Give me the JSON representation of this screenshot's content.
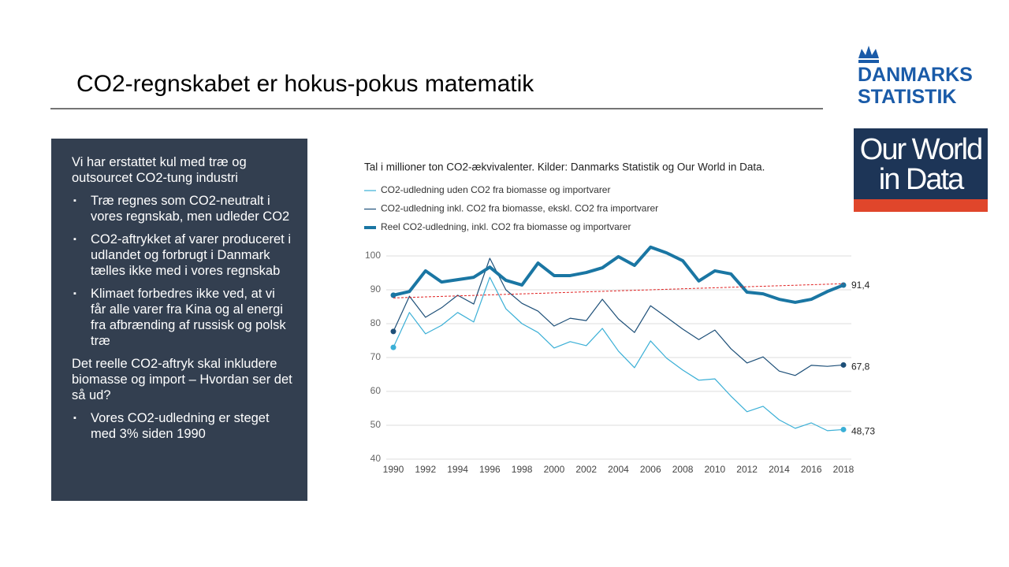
{
  "title": "CO2-regnskabet er hokus-pokus matematik",
  "textbox": {
    "items": [
      {
        "level": 0,
        "text": "Vi har erstattet kul med træ og outsourcet CO2-tung industri"
      },
      {
        "level": 1,
        "text": "Træ regnes som CO2-neutralt i vores regnskab, men udleder CO2"
      },
      {
        "level": 1,
        "text": "CO2-aftrykket af varer produceret i udlandet og forbrugt i Danmark tælles ikke med i vores regnskab"
      },
      {
        "level": 1,
        "text": "Klimaet forbedres ikke ved, at vi får alle varer fra Kina og al energi fra afbrænding af russisk og polsk træ"
      },
      {
        "level": 0,
        "text": "Det reelle CO2-aftryk skal inkludere biomasse og import – Hvordan ser det så ud?"
      },
      {
        "level": 1,
        "text": "Vores CO2-udledning er steget med 3% siden 1990"
      }
    ]
  },
  "logos": {
    "dst": [
      "DANMARKS",
      "STATISTIK"
    ],
    "owid": [
      "Our World",
      "in Data"
    ]
  },
  "chart_data": {
    "type": "line",
    "subtitle": "Tal i millioner ton CO2-ækvivalenter. Kilder: Danmarks Statistik og Our World in Data.",
    "x": [
      1990,
      1991,
      1992,
      1993,
      1994,
      1995,
      1996,
      1997,
      1998,
      1999,
      2000,
      2001,
      2002,
      2003,
      2004,
      2005,
      2006,
      2007,
      2008,
      2009,
      2010,
      2011,
      2012,
      2013,
      2014,
      2015,
      2016,
      2017,
      2018
    ],
    "series": [
      {
        "name": "CO2-udledning uden CO2 fra biomasse og importvarer",
        "color": "#3aafd6",
        "line_width": 1.2,
        "values": [
          73.0,
          83.3,
          77.0,
          79.5,
          83.3,
          80.5,
          93.7,
          84.4,
          80.0,
          77.4,
          72.8,
          74.7,
          73.5,
          78.6,
          71.9,
          67.0,
          74.9,
          69.8,
          66.3,
          63.3,
          63.7,
          58.6,
          54.0,
          55.6,
          51.6,
          49.1,
          50.7,
          48.4,
          48.73
        ],
        "value_labels": [
          null,
          null,
          null,
          null,
          null,
          null,
          null,
          null,
          null,
          null,
          null,
          null,
          null,
          null,
          null,
          null,
          null,
          null,
          null,
          null,
          null,
          null,
          null,
          null,
          null,
          null,
          null,
          null,
          "48,73"
        ]
      },
      {
        "name": "CO2-udledning inkl. CO2 fra biomasse, ekskl. CO2 fra importvarer",
        "color": "#1d4f78",
        "line_width": 1.2,
        "values": [
          77.7,
          88.1,
          81.9,
          84.7,
          88.4,
          85.8,
          99.3,
          90.0,
          86.0,
          83.7,
          79.3,
          81.6,
          80.9,
          87.2,
          81.4,
          77.4,
          85.3,
          81.9,
          78.4,
          75.3,
          78.1,
          72.6,
          68.4,
          70.2,
          66.0,
          64.7,
          67.7,
          67.4,
          67.8
        ],
        "value_labels": [
          null,
          null,
          null,
          null,
          null,
          null,
          null,
          null,
          null,
          null,
          null,
          null,
          null,
          null,
          null,
          null,
          null,
          null,
          null,
          null,
          null,
          null,
          null,
          null,
          null,
          null,
          null,
          null,
          "67,8"
        ]
      },
      {
        "name": "Reel CO2-udledning, inkl. CO2 fra biomasse og importvarer",
        "color": "#1a76a3",
        "line_width": 4,
        "values": [
          88.4,
          89.5,
          95.6,
          92.3,
          93.0,
          93.7,
          96.7,
          92.8,
          91.4,
          97.9,
          94.2,
          94.2,
          95.1,
          96.5,
          99.8,
          97.2,
          102.6,
          100.9,
          98.6,
          92.6,
          95.6,
          94.7,
          89.3,
          88.8,
          87.2,
          86.3,
          87.2,
          89.5,
          91.4
        ],
        "value_labels": [
          null,
          null,
          null,
          null,
          null,
          null,
          null,
          null,
          null,
          null,
          null,
          null,
          null,
          null,
          null,
          null,
          null,
          null,
          null,
          null,
          null,
          null,
          null,
          null,
          null,
          null,
          null,
          null,
          "91,4"
        ]
      }
    ],
    "trendline": {
      "color": "#e02020",
      "x": [
        1990,
        2018
      ],
      "values": [
        87.6,
        91.8
      ]
    },
    "xlim": [
      1990,
      2018
    ],
    "xticks": [
      1990,
      1992,
      1994,
      1996,
      1998,
      2000,
      2002,
      2004,
      2006,
      2008,
      2010,
      2012,
      2014,
      2016,
      2018
    ],
    "ylim": [
      40,
      100
    ],
    "yticks": [
      40,
      50,
      60,
      70,
      80,
      90,
      100
    ],
    "grid": true
  }
}
